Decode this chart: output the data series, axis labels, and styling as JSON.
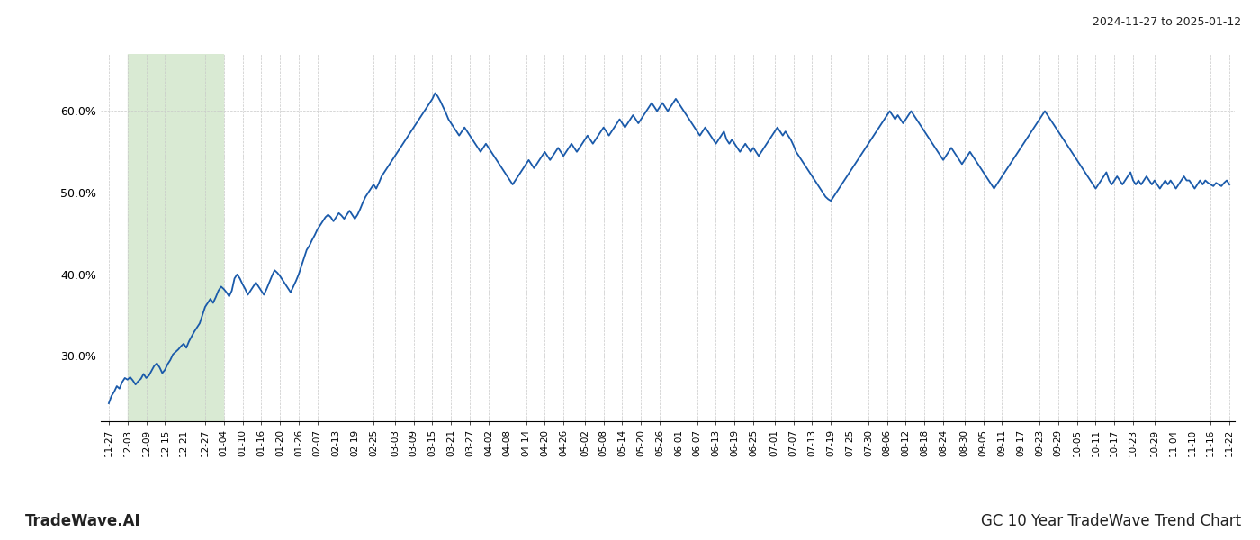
{
  "title_top_right": "2024-11-27 to 2025-01-12",
  "title_bottom_right": "GC 10 Year TradeWave Trend Chart",
  "title_bottom_left": "TradeWave.AI",
  "line_color": "#1a5aaa",
  "line_width": 1.3,
  "background_color": "#ffffff",
  "grid_color": "#c8c8c8",
  "shaded_region_color": "#d9ead3",
  "ylim_min": 22.0,
  "ylim_max": 67.0,
  "yticks": [
    30.0,
    40.0,
    50.0,
    60.0
  ],
  "x_labels": [
    "11-27",
    "12-03",
    "12-09",
    "12-15",
    "12-21",
    "12-27",
    "01-04",
    "01-10",
    "01-16",
    "01-20",
    "01-26",
    "02-07",
    "02-13",
    "02-19",
    "02-25",
    "03-03",
    "03-09",
    "03-15",
    "03-21",
    "03-27",
    "04-02",
    "04-08",
    "04-14",
    "04-20",
    "04-26",
    "05-02",
    "05-08",
    "05-14",
    "05-20",
    "05-26",
    "06-01",
    "06-07",
    "06-13",
    "06-19",
    "06-25",
    "07-01",
    "07-07",
    "07-13",
    "07-19",
    "07-25",
    "07-30",
    "08-06",
    "08-12",
    "08-18",
    "08-24",
    "08-30",
    "09-05",
    "09-11",
    "09-17",
    "09-23",
    "09-29",
    "10-05",
    "10-11",
    "10-17",
    "10-23",
    "10-29",
    "11-04",
    "11-10",
    "11-16",
    "11-22"
  ],
  "shade_start_label": "12-03",
  "shade_end_label": "01-04",
  "y_values": [
    24.2,
    25.1,
    25.6,
    26.3,
    26.0,
    26.8,
    27.3,
    27.1,
    27.4,
    27.0,
    26.5,
    26.9,
    27.2,
    27.8,
    27.3,
    27.6,
    28.2,
    28.8,
    29.1,
    28.6,
    27.9,
    28.3,
    29.0,
    29.5,
    30.2,
    30.5,
    30.8,
    31.2,
    31.5,
    31.0,
    31.8,
    32.4,
    33.0,
    33.5,
    34.0,
    35.0,
    36.0,
    36.5,
    37.0,
    36.5,
    37.2,
    38.0,
    38.5,
    38.2,
    37.8,
    37.3,
    38.0,
    39.5,
    40.0,
    39.5,
    38.8,
    38.2,
    37.5,
    38.0,
    38.5,
    39.0,
    38.5,
    38.0,
    37.5,
    38.2,
    39.0,
    39.8,
    40.5,
    40.2,
    39.8,
    39.3,
    38.8,
    38.3,
    37.8,
    38.5,
    39.2,
    40.0,
    41.0,
    42.0,
    43.0,
    43.5,
    44.2,
    44.8,
    45.5,
    46.0,
    46.5,
    47.0,
    47.3,
    47.0,
    46.5,
    47.0,
    47.5,
    47.2,
    46.8,
    47.3,
    47.8,
    47.3,
    46.8,
    47.3,
    48.0,
    48.8,
    49.5,
    50.0,
    50.5,
    51.0,
    50.5,
    51.2,
    52.0,
    52.5,
    53.0,
    53.5,
    54.0,
    54.5,
    55.0,
    55.5,
    56.0,
    56.5,
    57.0,
    57.5,
    58.0,
    58.5,
    59.0,
    59.5,
    60.0,
    60.5,
    61.0,
    61.5,
    62.2,
    61.8,
    61.2,
    60.5,
    59.8,
    59.0,
    58.5,
    58.0,
    57.5,
    57.0,
    57.5,
    58.0,
    57.5,
    57.0,
    56.5,
    56.0,
    55.5,
    55.0,
    55.5,
    56.0,
    55.5,
    55.0,
    54.5,
    54.0,
    53.5,
    53.0,
    52.5,
    52.0,
    51.5,
    51.0,
    51.5,
    52.0,
    52.5,
    53.0,
    53.5,
    54.0,
    53.5,
    53.0,
    53.5,
    54.0,
    54.5,
    55.0,
    54.5,
    54.0,
    54.5,
    55.0,
    55.5,
    55.0,
    54.5,
    55.0,
    55.5,
    56.0,
    55.5,
    55.0,
    55.5,
    56.0,
    56.5,
    57.0,
    56.5,
    56.0,
    56.5,
    57.0,
    57.5,
    58.0,
    57.5,
    57.0,
    57.5,
    58.0,
    58.5,
    59.0,
    58.5,
    58.0,
    58.5,
    59.0,
    59.5,
    59.0,
    58.5,
    59.0,
    59.5,
    60.0,
    60.5,
    61.0,
    60.5,
    60.0,
    60.5,
    61.0,
    60.5,
    60.0,
    60.5,
    61.0,
    61.5,
    61.0,
    60.5,
    60.0,
    59.5,
    59.0,
    58.5,
    58.0,
    57.5,
    57.0,
    57.5,
    58.0,
    57.5,
    57.0,
    56.5,
    56.0,
    56.5,
    57.0,
    57.5,
    56.5,
    56.0,
    56.5,
    56.0,
    55.5,
    55.0,
    55.5,
    56.0,
    55.5,
    55.0,
    55.5,
    55.0,
    54.5,
    55.0,
    55.5,
    56.0,
    56.5,
    57.0,
    57.5,
    58.0,
    57.5,
    57.0,
    57.5,
    57.0,
    56.5,
    55.8,
    55.0,
    54.5,
    54.0,
    53.5,
    53.0,
    52.5,
    52.0,
    51.5,
    51.0,
    50.5,
    50.0,
    49.5,
    49.2,
    49.0,
    49.5,
    50.0,
    50.5,
    51.0,
    51.5,
    52.0,
    52.5,
    53.0,
    53.5,
    54.0,
    54.5,
    55.0,
    55.5,
    56.0,
    56.5,
    57.0,
    57.5,
    58.0,
    58.5,
    59.0,
    59.5,
    60.0,
    59.5,
    59.0,
    59.5,
    59.0,
    58.5,
    59.0,
    59.5,
    60.0,
    59.5,
    59.0,
    58.5,
    58.0,
    57.5,
    57.0,
    56.5,
    56.0,
    55.5,
    55.0,
    54.5,
    54.0,
    54.5,
    55.0,
    55.5,
    55.0,
    54.5,
    54.0,
    53.5,
    54.0,
    54.5,
    55.0,
    54.5,
    54.0,
    53.5,
    53.0,
    52.5,
    52.0,
    51.5,
    51.0,
    50.5,
    51.0,
    51.5,
    52.0,
    52.5,
    53.0,
    53.5,
    54.0,
    54.5,
    55.0,
    55.5,
    56.0,
    56.5,
    57.0,
    57.5,
    58.0,
    58.5,
    59.0,
    59.5,
    60.0,
    59.5,
    59.0,
    58.5,
    58.0,
    57.5,
    57.0,
    56.5,
    56.0,
    55.5,
    55.0,
    54.5,
    54.0,
    53.5,
    53.0,
    52.5,
    52.0,
    51.5,
    51.0,
    50.5,
    51.0,
    51.5,
    52.0,
    52.5,
    51.5,
    51.0,
    51.5,
    52.0,
    51.5,
    51.0,
    51.5,
    52.0,
    52.5,
    51.5,
    51.0,
    51.5,
    51.0,
    51.5,
    52.0,
    51.5,
    51.0,
    51.5,
    51.0,
    50.5,
    51.0,
    51.5,
    51.0,
    51.5,
    51.0,
    50.5,
    51.0,
    51.5,
    52.0,
    51.5,
    51.5,
    51.0,
    50.5,
    51.0,
    51.5,
    51.0,
    51.5,
    51.2,
    51.0,
    50.8,
    51.2,
    51.0,
    50.8,
    51.2,
    51.5,
    51.0
  ]
}
